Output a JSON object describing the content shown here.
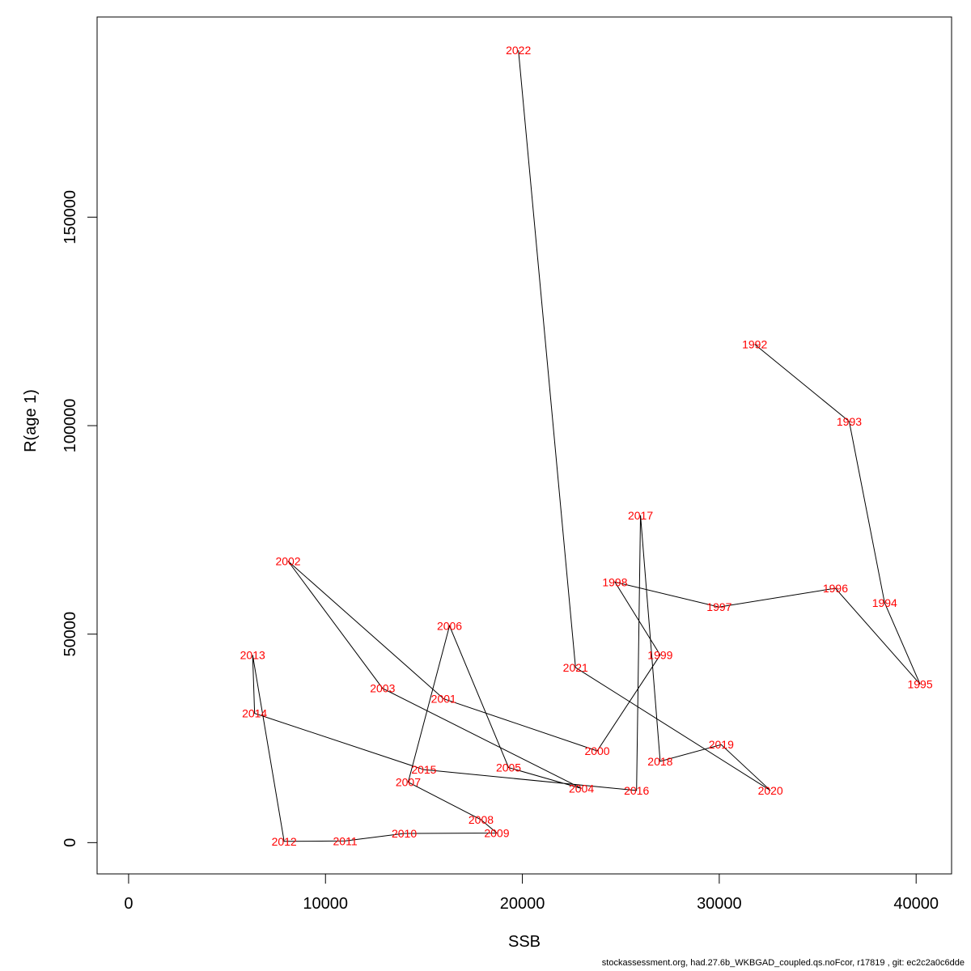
{
  "chart_data": {
    "type": "line",
    "title": "",
    "xlabel": "SSB",
    "ylabel": "R(age 1)",
    "xlim": [
      -1600,
      41800
    ],
    "ylim": [
      -7500,
      198000
    ],
    "xticks": [
      0,
      10000,
      20000,
      30000,
      40000
    ],
    "xtick_labels": [
      "0",
      "10000",
      "20000",
      "30000",
      "40000"
    ],
    "yticks": [
      0,
      50000,
      100000,
      150000
    ],
    "ytick_labels": [
      "0",
      "50000",
      "100000",
      "150000"
    ],
    "grid": false,
    "line_color": "#000000",
    "label_color": "#ff0000",
    "points": [
      {
        "label": "1992",
        "x": 31800,
        "y": 119500
      },
      {
        "label": "1993",
        "x": 36600,
        "y": 101000
      },
      {
        "label": "1994",
        "x": 38400,
        "y": 57500
      },
      {
        "label": "1995",
        "x": 40200,
        "y": 38000
      },
      {
        "label": "1996",
        "x": 35900,
        "y": 61000
      },
      {
        "label": "1997",
        "x": 30000,
        "y": 56500
      },
      {
        "label": "1998",
        "x": 24700,
        "y": 62500
      },
      {
        "label": "1999",
        "x": 27000,
        "y": 45000
      },
      {
        "label": "2000",
        "x": 23800,
        "y": 22000
      },
      {
        "label": "2001",
        "x": 16000,
        "y": 34500
      },
      {
        "label": "2002",
        "x": 8100,
        "y": 67500
      },
      {
        "label": "2003",
        "x": 12900,
        "y": 37000
      },
      {
        "label": "2004",
        "x": 23000,
        "y": 13000
      },
      {
        "label": "2005",
        "x": 19300,
        "y": 18000
      },
      {
        "label": "2006",
        "x": 16300,
        "y": 52000
      },
      {
        "label": "2007",
        "x": 14200,
        "y": 14500
      },
      {
        "label": "2008",
        "x": 17900,
        "y": 5500
      },
      {
        "label": "2009",
        "x": 18700,
        "y": 2300
      },
      {
        "label": "2010",
        "x": 14000,
        "y": 2200
      },
      {
        "label": "2011",
        "x": 11000,
        "y": 400
      },
      {
        "label": "2012",
        "x": 7900,
        "y": 300
      },
      {
        "label": "2013",
        "x": 6300,
        "y": 45000
      },
      {
        "label": "2014",
        "x": 6400,
        "y": 31000
      },
      {
        "label": "2015",
        "x": 15000,
        "y": 17500
      },
      {
        "label": "2016",
        "x": 25800,
        "y": 12500
      },
      {
        "label": "2017",
        "x": 26000,
        "y": 78500
      },
      {
        "label": "2018",
        "x": 27000,
        "y": 19500
      },
      {
        "label": "2019",
        "x": 30100,
        "y": 23500
      },
      {
        "label": "2020",
        "x": 32600,
        "y": 12500
      },
      {
        "label": "2021",
        "x": 22700,
        "y": 42000
      },
      {
        "label": "2022",
        "x": 19800,
        "y": 190000
      }
    ]
  },
  "footer": "stockassessment.org, had.27.6b_WKBGAD_coupled.qs.noFcor, r17819 , git: ec2c2a0c6dde"
}
